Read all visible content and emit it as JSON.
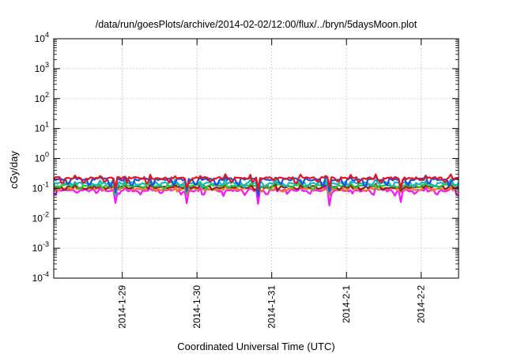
{
  "chart_data": {
    "type": "line",
    "title": "/data/run/goesPlots/archive/2014-02-02/12:00/flux/../bryn/5daysMoon.plot",
    "xlabel": "Coordinated Universal Time (UTC)",
    "ylabel": "cGy/day",
    "yscale": "log",
    "ylim": [
      0.0001,
      10000
    ],
    "y_ticks": [
      {
        "base": "10",
        "exp": "4"
      },
      {
        "base": "10",
        "exp": "3"
      },
      {
        "base": "10",
        "exp": "2"
      },
      {
        "base": "10",
        "exp": "1"
      },
      {
        "base": "10",
        "exp": "0"
      },
      {
        "base": "10",
        "exp": "-1"
      },
      {
        "base": "10",
        "exp": "-2"
      },
      {
        "base": "10",
        "exp": "-3"
      },
      {
        "base": "10",
        "exp": "-4"
      }
    ],
    "xlim": [
      "2014-01-28 02:00",
      "2014-02-02 12:00"
    ],
    "x_ticks": [
      {
        "date": "2014-01-29 00:00",
        "label": "2014-1-29"
      },
      {
        "date": "2014-01-30 00:00",
        "label": "2014-1-30"
      },
      {
        "date": "2014-01-31 00:00",
        "label": "2014-1-31"
      },
      {
        "date": "2014-02-01 00:00",
        "label": "2014-2-1"
      },
      {
        "date": "2014-02-02 00:00",
        "label": "2014-2-2"
      }
    ],
    "grid": true,
    "legend": "none",
    "series": [
      {
        "color": "#e8141c",
        "baseline": 0.22,
        "dips": [
          0.15,
          0.1
        ]
      },
      {
        "color": "#1f4fe0",
        "baseline": 0.2,
        "dips": [
          0.12,
          0.08
        ]
      },
      {
        "color": "#19b5c2",
        "baseline": 0.15,
        "dips": [
          0.11,
          0.08
        ]
      },
      {
        "color": "#22c83a",
        "baseline": 0.125,
        "dips": [
          0.1,
          0.08
        ]
      },
      {
        "color": "#8a2020",
        "baseline": 0.11,
        "dips": [
          0.09,
          0.07
        ]
      },
      {
        "color": "#f07a20",
        "baseline": 0.095,
        "dips": [
          0.08,
          0.06
        ]
      },
      {
        "color": "#ff10ff",
        "baseline": 0.085,
        "dips": [
          0.06,
          0.03
        ]
      }
    ]
  }
}
